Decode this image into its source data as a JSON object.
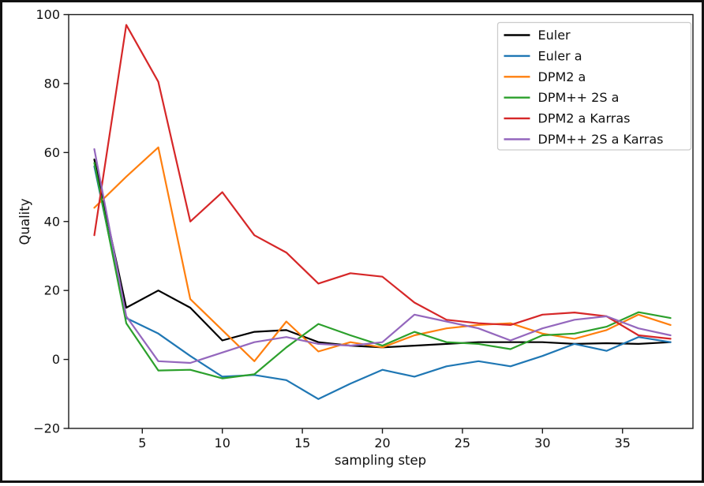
{
  "figure": {
    "xlabel": "sampling step",
    "ylabel": "Quality"
  },
  "chart_data": {
    "type": "line",
    "title": "",
    "xlabel": "sampling step",
    "ylabel": "Quality",
    "xlim": [
      0.4,
      39.4
    ],
    "ylim": [
      -20,
      100
    ],
    "xticks": [
      5,
      10,
      15,
      20,
      25,
      30,
      35
    ],
    "yticks": [
      -20,
      0,
      20,
      40,
      60,
      80,
      100
    ],
    "grid": false,
    "legend_position": "upper right",
    "x": [
      2,
      4,
      6,
      8,
      10,
      12,
      14,
      16,
      18,
      20,
      22,
      24,
      26,
      28,
      30,
      32,
      34,
      36,
      38
    ],
    "series": [
      {
        "name": "Euler",
        "color": "#000000",
        "values": [
          58,
          15,
          20,
          15,
          5.5,
          8,
          8.5,
          5,
          4,
          3.5,
          4,
          4.5,
          5,
          5,
          5,
          4.5,
          4.7,
          4.5,
          5
        ]
      },
      {
        "name": "Euler a",
        "color": "#1f77b4",
        "values": [
          56,
          12,
          7.5,
          1,
          -5,
          -4.5,
          -6,
          -11.5,
          -7,
          -3,
          -5,
          -2,
          -0.5,
          -2,
          1,
          4.5,
          2.5,
          6.5,
          5
        ]
      },
      {
        "name": "DPM2 a",
        "color": "#ff7f0e",
        "values": [
          44,
          53,
          61.5,
          17.5,
          8.5,
          -0.5,
          11,
          2.3,
          5,
          3.5,
          7,
          9,
          10,
          10.5,
          7.5,
          6,
          8.5,
          13,
          10
        ]
      },
      {
        "name": "DPM++ 2S a",
        "color": "#2ca02c",
        "values": [
          57,
          10.5,
          -3.2,
          -3,
          -5.5,
          -4.3,
          3.5,
          10.3,
          7,
          4,
          8,
          5,
          4.5,
          3,
          7,
          7.5,
          9.5,
          13.7,
          12
        ]
      },
      {
        "name": "DPM2 a Karras",
        "color": "#d62728",
        "values": [
          36,
          97,
          80.5,
          40,
          48.5,
          36,
          31,
          22,
          25,
          24,
          16.5,
          11.5,
          10.5,
          10,
          13,
          13.6,
          12.5,
          7,
          6
        ]
      },
      {
        "name": "DPM++ 2S a Karras",
        "color": "#9467bd",
        "values": [
          61,
          12.5,
          -0.5,
          -1,
          2,
          5,
          6.5,
          4.5,
          4,
          5,
          13,
          11,
          9,
          5.5,
          9,
          11.5,
          12.5,
          9,
          7
        ]
      }
    ]
  }
}
